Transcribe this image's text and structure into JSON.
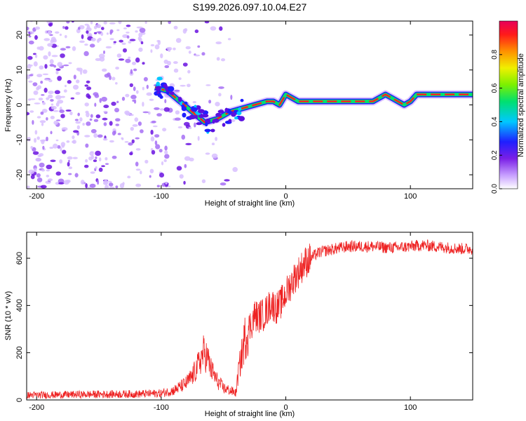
{
  "title": "S199.2026.097.10.04.E27",
  "chart_data": [
    {
      "type": "heatmap",
      "title": "S199.2026.097.10.04.E27",
      "xlabel": "Height of straight line (km)",
      "ylabel": "Frequency (Hz)",
      "xlim": [
        -208,
        150
      ],
      "ylim": [
        -24,
        24
      ],
      "xticks": [
        "-200",
        "-100",
        "0",
        "100"
      ],
      "yticks": [
        "-20",
        "-10",
        "0",
        "10",
        "20"
      ],
      "xtick_values": [
        -200,
        -100,
        0,
        100
      ],
      "ytick_values": [
        -20,
        -10,
        0,
        10,
        20
      ],
      "colorbar": {
        "label": "Normalized spectral amplitude",
        "range": [
          0.0,
          1.0
        ],
        "ticks": [
          "0.0",
          "0.2",
          "0.4",
          "0.6",
          "0.8"
        ],
        "tick_values": [
          0.0,
          0.2,
          0.4,
          0.6,
          0.8
        ],
        "colormap": [
          "#ffffff",
          "#c8a0ff",
          "#7a1fe6",
          "#1f1fff",
          "#00c8ff",
          "#00e070",
          "#7cf000",
          "#f0f000",
          "#ff9000",
          "#ff1a1a",
          "#e8005a"
        ]
      },
      "ridge": {
        "description": "dominant frequency trace (Hz) vs height (km)",
        "x": [
          -105,
          -95,
          -85,
          -75,
          -65,
          -55,
          -45,
          -35,
          -25,
          -15,
          -10,
          -5,
          0,
          10,
          20,
          30,
          40,
          50,
          60,
          70,
          80,
          85,
          90,
          95,
          100,
          105,
          110,
          120,
          130,
          140,
          150
        ],
        "y": [
          5,
          4,
          1,
          -2,
          -5,
          -4,
          -2,
          -1,
          0,
          1,
          1,
          0,
          3,
          1,
          1,
          1,
          1,
          1,
          1,
          1,
          3,
          2,
          1,
          0,
          1,
          3,
          3,
          3,
          3,
          3,
          3
        ]
      },
      "scatter_extent": {
        "x": [
          -208,
          -40
        ],
        "y": [
          -24,
          24
        ]
      }
    },
    {
      "type": "line",
      "xlabel": "Height of straight line (km)",
      "ylabel": "SNR (10 * v/v)",
      "xlim": [
        -208,
        150
      ],
      "ylim": [
        0,
        710
      ],
      "xticks": [
        "-200",
        "-100",
        "0",
        "100"
      ],
      "yticks": [
        "0",
        "200",
        "400",
        "600"
      ],
      "xtick_values": [
        -200,
        -100,
        0,
        100
      ],
      "ytick_values": [
        0,
        200,
        400,
        600
      ],
      "series": [
        {
          "name": "SNR",
          "color": "#ee2222",
          "x": [
            -208,
            -180,
            -150,
            -120,
            -100,
            -90,
            -80,
            -75,
            -70,
            -66,
            -63,
            -60,
            -55,
            -50,
            -45,
            -40,
            -38,
            -35,
            -33,
            -30,
            -27,
            -25,
            -22,
            -20,
            -18,
            -15,
            -12,
            -10,
            -8,
            -5,
            -2,
            0,
            3,
            6,
            10,
            15,
            20,
            25,
            30,
            40,
            50,
            60,
            70,
            80,
            90,
            100,
            110,
            120,
            130,
            140,
            150
          ],
          "y": [
            20,
            22,
            24,
            25,
            28,
            40,
            70,
            100,
            150,
            200,
            180,
            130,
            80,
            50,
            40,
            30,
            120,
            200,
            260,
            300,
            330,
            360,
            350,
            360,
            360,
            380,
            410,
            400,
            390,
            400,
            430,
            450,
            480,
            510,
            540,
            580,
            600,
            620,
            630,
            640,
            650,
            650,
            650,
            645,
            645,
            650,
            655,
            650,
            645,
            640,
            640
          ]
        }
      ]
    }
  ]
}
